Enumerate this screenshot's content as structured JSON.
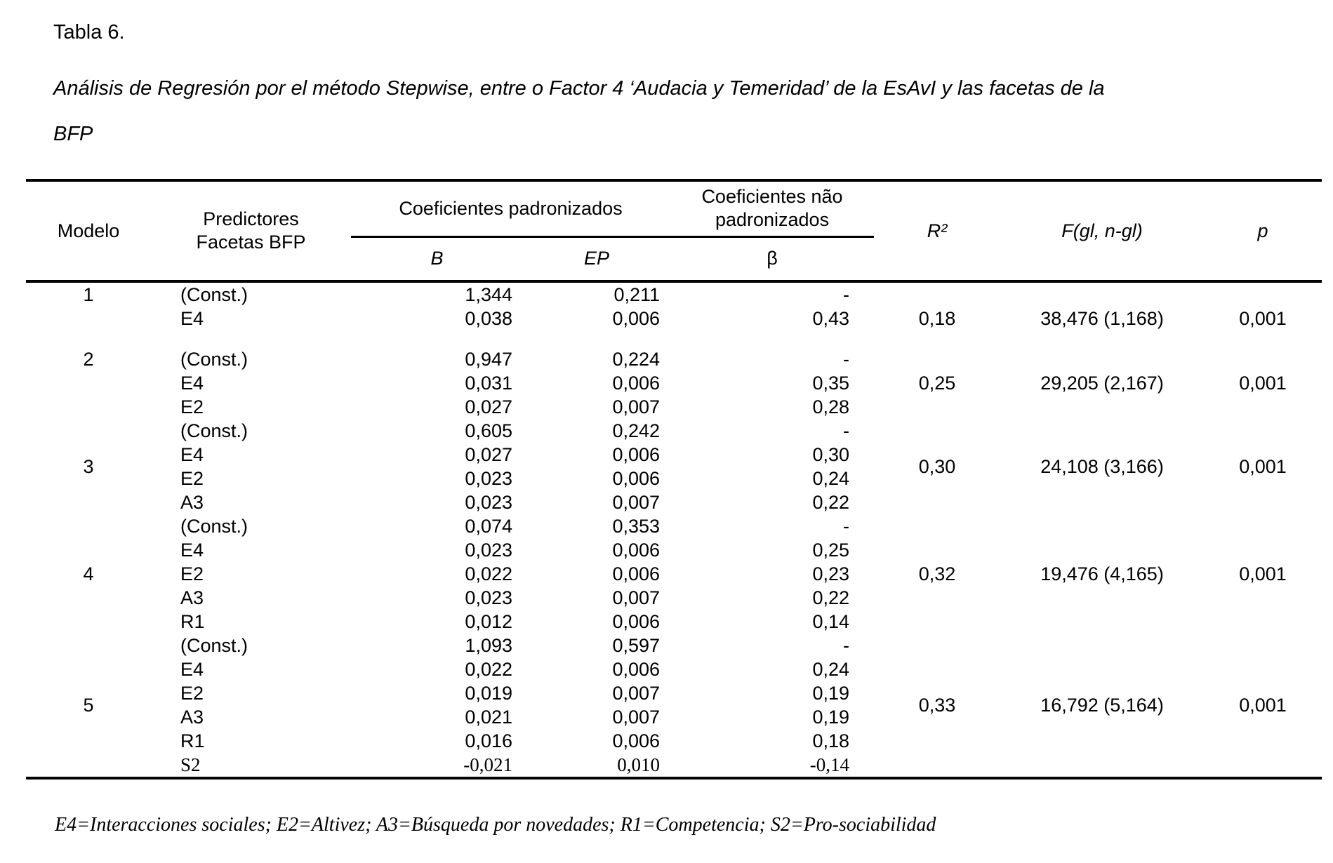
{
  "title": "Tabla 6.",
  "subtitle": "Análisis de Regresión por el método Stepwise, entre o Factor 4 ‘Audacia y Temeridad’ de la EsAvI y las facetas de la BFP",
  "footnote": "E4=Interacciones sociales; E2=Altivez; A3=Búsqueda por novedades; R1=Competencia; S2=Pro-sociabilidad",
  "table": {
    "header": {
      "modelo": "Modelo",
      "predictores_line1": "Predictores",
      "predictores_line2": "Facetas BFP",
      "group_padronizados": "Coeficientes padronizados",
      "group_nao_padronizados": "Coeficientes não padronizados",
      "sub_b": "B",
      "sub_ep": "EP",
      "sub_beta": "β",
      "r2": "R²",
      "f": "F(gl, n-gl)",
      "p": "p"
    },
    "models": [
      {
        "modelo": "1",
        "rows": [
          [
            "(Const.)",
            "1,344",
            "0,211",
            "-"
          ],
          [
            "E4",
            "0,038",
            "0,006",
            "0,43"
          ]
        ],
        "r2": "0,18",
        "f": "38,476 (1,168)",
        "p": "0,001",
        "layout": {
          "num_valign": "top",
          "stats_valign": "bottom",
          "gap_after": true
        }
      },
      {
        "modelo": "2",
        "rows": [
          [
            "(Const.)",
            "0,947",
            "0,224",
            "-"
          ],
          [
            "E4",
            "0,031",
            "0,006",
            "0,35"
          ],
          [
            "E2",
            "0,027",
            "0,007",
            "0,28"
          ]
        ],
        "r2": "0,25",
        "f": "29,205 (2,167)",
        "p": "0,001",
        "layout": {
          "num_valign": "top",
          "stats_valign": "middle"
        }
      },
      {
        "modelo": "3",
        "rows": [
          [
            "(Const.)",
            "0,605",
            "0,242",
            "-"
          ],
          [
            "E4",
            "0,027",
            "0,006",
            "0,30"
          ],
          [
            "E2",
            "0,023",
            "0,006",
            "0,24"
          ],
          [
            "A3",
            "0,023",
            "0,007",
            "0,22"
          ]
        ],
        "r2": "0,30",
        "f": "24,108 (3,166)",
        "p": "0,001",
        "layout": {
          "num_valign": "middle",
          "stats_valign": "middle"
        }
      },
      {
        "modelo": "4",
        "rows": [
          [
            "(Const.)",
            "0,074",
            "0,353",
            "-"
          ],
          [
            "E4",
            "0,023",
            "0,006",
            "0,25"
          ],
          [
            "E2",
            "0,022",
            "0,006",
            "0,23"
          ],
          [
            "A3",
            "0,023",
            "0,007",
            "0,22"
          ],
          [
            "R1",
            "0,012",
            "0,006",
            "0,14"
          ]
        ],
        "r2": "0,32",
        "f": "19,476 (4,165)",
        "p": "0,001",
        "layout": {
          "num_valign": "middle",
          "stats_valign": "middle"
        }
      },
      {
        "modelo": "5",
        "rows": [
          [
            "(Const.)",
            "1,093",
            "0,597",
            "-"
          ],
          [
            "E4",
            "0,022",
            "0,006",
            "0,24"
          ],
          [
            "E2",
            "0,019",
            "0,007",
            "0,19"
          ],
          [
            "A3",
            "0,021",
            "0,007",
            "0,19"
          ],
          [
            "R1",
            "0,016",
            "0,006",
            "0,18"
          ],
          [
            "S2",
            "-0,021",
            "0,010",
            "-0,14"
          ]
        ],
        "r2": "0,33",
        "f": "16,792 (5,164)",
        "p": "0,001",
        "layout": {
          "num_valign": "middle",
          "stats_valign": "middle",
          "serif_rows": [
            5
          ]
        }
      }
    ]
  }
}
